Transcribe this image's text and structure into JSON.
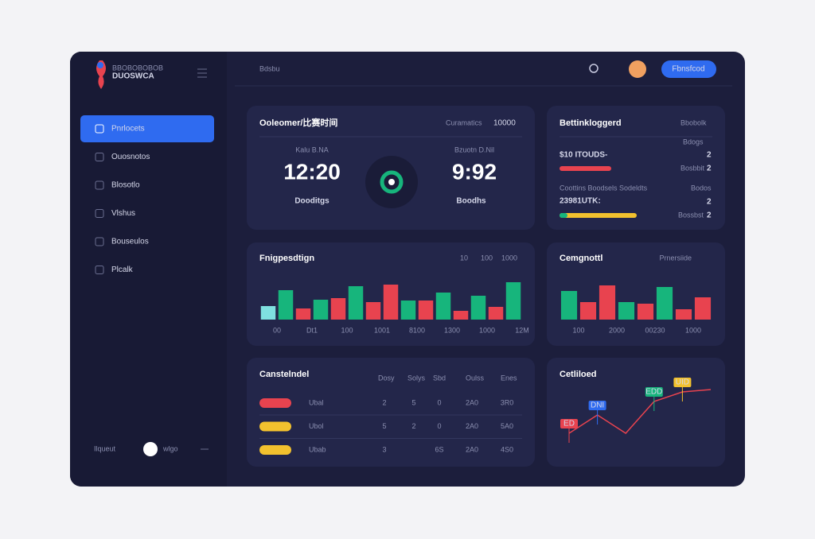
{
  "sidebar": {
    "brand_small": "BBOBOBOBOB",
    "brand": "DUOSWCA",
    "menu": [
      "Pnrlocets",
      "Ouosnotos",
      "Blosotlo",
      "Vlshus",
      "Bouseulos",
      "Plcalk"
    ],
    "footer_left": "Ilqueut",
    "footer_right": "wlgo"
  },
  "topbar": {
    "title": "Bdsbu",
    "button": "Fbnsfcod"
  },
  "match": {
    "title": "Ooleomer/比赛时间",
    "right_label": "Curamatics",
    "right_value": "10000",
    "left": {
      "label": "Kalu B.NA",
      "time": "12:20",
      "status": "Dooditgs"
    },
    "right": {
      "label": "Bzuotn D.Nil",
      "time": "9:92",
      "status": "Boodhs"
    }
  },
  "betting": {
    "title": "Bettinkloggerd",
    "right_label": "Bbobolk",
    "row1": {
      "amount": "$10 ITOUDS-",
      "tag1": "Bdogs",
      "num1": "2",
      "tag2": "Bosbbit",
      "num2": "2"
    },
    "row2": {
      "caption": "Coottins Boodsels Sodeldts",
      "amount": "23981UTK:",
      "tag1": "Bodos",
      "num1": "2",
      "tag2": "Bossbst",
      "num2": "2"
    }
  },
  "chart_data": [
    {
      "type": "bar",
      "title": "Fnigpesdtign",
      "legend": [
        "10",
        "100",
        "1000"
      ],
      "categories": [
        "00",
        null,
        "Dt1",
        null,
        "100",
        null,
        "1001",
        null,
        "8100",
        null,
        "1300",
        null,
        "1000",
        null,
        "12M"
      ],
      "values": [
        17,
        37,
        14,
        25,
        27,
        42,
        22,
        44,
        24,
        24,
        34,
        11,
        30,
        16,
        47
      ],
      "colors": [
        "#7fe0e0",
        "#17b57c",
        "#e8434f",
        "#17b57c",
        "#e8434f",
        "#17b57c",
        "#e8434f",
        "#e8434f",
        "#17b57c",
        "#e8434f",
        "#17b57c",
        "#e8434f",
        "#17b57c",
        "#e8434f",
        "#17b57c"
      ]
    },
    {
      "type": "bar",
      "title": "Cemgnottl",
      "legend": [
        "Prnersiide"
      ],
      "categories": [
        "100",
        null,
        "2000",
        null,
        "00230",
        null,
        "1000",
        null
      ],
      "values": [
        36,
        22,
        43,
        22,
        20,
        41,
        13,
        28
      ],
      "colors": [
        "#17b57c",
        "#e8434f",
        "#e8434f",
        "#17b57c",
        "#e8434f",
        "#17b57c",
        "#e8434f",
        "#e8434f"
      ]
    },
    {
      "type": "line",
      "title": "Cetliloed",
      "color": "#e8434f",
      "values": [
        15,
        38,
        15,
        55,
        67,
        70
      ],
      "tags": [
        "ED",
        "DNI",
        null,
        "EDD",
        "UID",
        null
      ],
      "tag_colors": [
        "#e8434f",
        "#2f6bf0",
        null,
        "#17b57c",
        "#f2c12e",
        null
      ]
    }
  ],
  "table": {
    "title": "Canstelndel",
    "headers": [
      "Dosy",
      "Solys",
      "Sbd",
      "Oulss",
      "Enes"
    ],
    "rows": [
      {
        "color": "#e8434f",
        "cells": [
          "Ubal",
          "2",
          "5",
          "0",
          "2A0",
          "3R0"
        ]
      },
      {
        "color": "#f2c12e",
        "cells": [
          "Ubol",
          "5",
          "2",
          "0",
          "2A0",
          "5A0"
        ]
      },
      {
        "color": "#f2c12e",
        "cells": [
          "Ubab",
          "3",
          "",
          "6S",
          "2A0",
          "4S0"
        ]
      }
    ]
  }
}
